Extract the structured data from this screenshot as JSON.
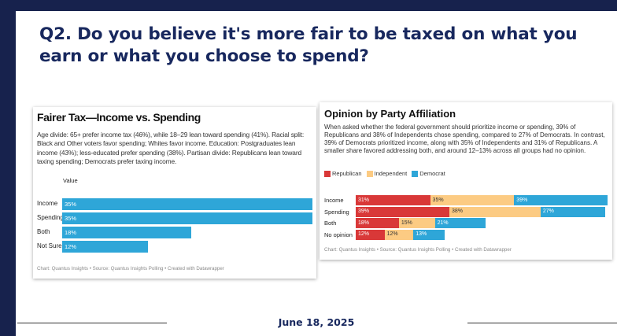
{
  "slide": {
    "title": "Q2. Do you believe it's more fair to be taxed on what you earn or what you choose to spend?",
    "date": "June 18, 2025"
  },
  "chart_data": [
    {
      "type": "bar",
      "title": "Fairer Tax—Income vs. Spending",
      "description": "Age divide: 65+ prefer income tax (46%), while 18–29 lean toward spending (41%). Racial split: Black and Other voters favor spending; Whites favor income. Education: Postgraduates lean income (43%); less-educated prefer spending (38%). Partisan divide: Republicans lean toward taxing spending; Democrats prefer taxing income.",
      "column_header": "Value",
      "categories": [
        "Income",
        "Spending",
        "Both",
        "Not Sure"
      ],
      "values": [
        35,
        35,
        18,
        12
      ],
      "value_labels": [
        "35%",
        "35%",
        "18%",
        "12%"
      ],
      "source": "Chart: Quantus Insights • Source: Quantus Insights Polling • Created with Datawrapper",
      "color": "#2ea6d8"
    },
    {
      "type": "bar",
      "stacked": true,
      "title": "Opinion by Party Affiliation",
      "description": "When asked whether the federal government should prioritize income or spending, 39% of Republicans and 38% of Independents chose spending, compared to 27% of Democrats. In contrast, 39% of Democrats prioritized income, along with 35% of Independents and 31% of Republicans. A smaller share favored addressing both, and around 12–13% across all groups had no opinion.",
      "categories": [
        "Income",
        "Spending",
        "Both",
        "No opinion"
      ],
      "series": [
        {
          "name": "Republican",
          "color": "#d93838",
          "values": [
            31,
            39,
            18,
            12
          ],
          "labels": [
            "31%",
            "39%",
            "18%",
            "12%"
          ]
        },
        {
          "name": "Independent",
          "color": "#fccb83",
          "values": [
            35,
            38,
            15,
            12
          ],
          "labels": [
            "35%",
            "38%",
            "15%",
            "12%"
          ]
        },
        {
          "name": "Democrat",
          "color": "#2ea6d8",
          "values": [
            39,
            27,
            21,
            13
          ],
          "labels": [
            "39%",
            "27%",
            "21%",
            "13%"
          ]
        }
      ],
      "source": "Chart: Quantus Insights • Source: Quantus Insights Polling • Created with Datawrapper"
    }
  ]
}
